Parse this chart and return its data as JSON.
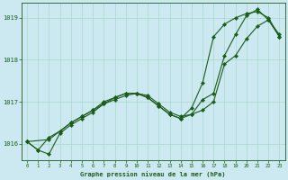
{
  "xlabel": "Graphe pression niveau de la mer (hPa)",
  "background_color": "#cce8f0",
  "line_color": "#1a5c1a",
  "grid_color": "#a8d8c8",
  "ylim": [
    1015.6,
    1019.35
  ],
  "xlim": [
    -0.5,
    23.5
  ],
  "yticks": [
    1016,
    1017,
    1018,
    1019
  ],
  "xticks": [
    0,
    1,
    2,
    3,
    4,
    5,
    6,
    7,
    8,
    9,
    10,
    11,
    12,
    13,
    14,
    15,
    16,
    17,
    18,
    19,
    20,
    21,
    22,
    23
  ],
  "series1_x": [
    0,
    1,
    2,
    3,
    4,
    5,
    6,
    7,
    8,
    9,
    10,
    11,
    12,
    13,
    14,
    15,
    16,
    17,
    18,
    19,
    20,
    21,
    22,
    23
  ],
  "series1_y": [
    1016.05,
    1015.85,
    1015.75,
    1016.25,
    1016.45,
    1016.6,
    1016.75,
    1016.95,
    1017.05,
    1017.15,
    1017.2,
    1017.15,
    1016.95,
    1016.75,
    1016.65,
    1016.7,
    1017.05,
    1017.2,
    1018.1,
    1018.6,
    1019.05,
    1019.2,
    1018.95,
    1018.55
  ],
  "series2_x": [
    0,
    1,
    2,
    3,
    4,
    5,
    6,
    7,
    8,
    9,
    10,
    11,
    12,
    13,
    14,
    15,
    16,
    17,
    18,
    19,
    20,
    21,
    22,
    23
  ],
  "series2_y": [
    1016.05,
    1015.85,
    1016.15,
    1016.3,
    1016.5,
    1016.65,
    1016.8,
    1017.0,
    1017.1,
    1017.2,
    1017.2,
    1017.1,
    1016.9,
    1016.7,
    1016.6,
    1016.85,
    1017.45,
    1018.55,
    1018.85,
    1019.0,
    1019.1,
    1019.15,
    1019.0,
    1018.55
  ],
  "series3_x": [
    0,
    2,
    3,
    4,
    5,
    6,
    7,
    8,
    9,
    10,
    11,
    12,
    13,
    14,
    15,
    16,
    17,
    18,
    19,
    20,
    21,
    22,
    23
  ],
  "series3_y": [
    1016.05,
    1016.1,
    1016.3,
    1016.5,
    1016.65,
    1016.8,
    1016.95,
    1017.1,
    1017.2,
    1017.2,
    1017.1,
    1016.9,
    1016.7,
    1016.6,
    1016.7,
    1016.8,
    1017.0,
    1017.9,
    1018.1,
    1018.5,
    1018.8,
    1018.95,
    1018.6
  ]
}
